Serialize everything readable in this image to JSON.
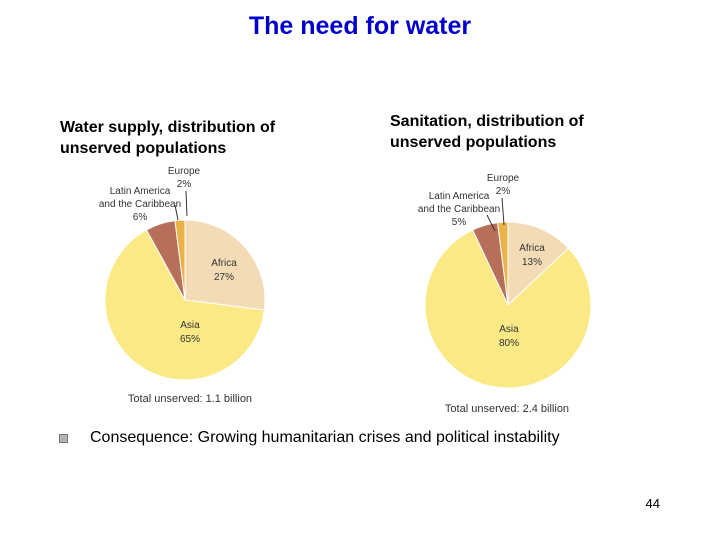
{
  "title": "The need for water",
  "colors": {
    "title": "#0000cc",
    "africa": "#f3dcb5",
    "asia": "#fbe986",
    "latin_america": "#b86f5a",
    "europe": "#e9b348"
  },
  "chart_data": [
    {
      "type": "pie",
      "title": "Water supply, distribution of unserved populations",
      "total_label": "Total unserved: 1.1 billion",
      "slices": [
        {
          "key": "africa",
          "label": "Africa",
          "value": 27,
          "value_label": "27%"
        },
        {
          "key": "asia",
          "label": "Asia",
          "value": 65,
          "value_label": "65%"
        },
        {
          "key": "latin_america",
          "label_lines": [
            "Latin America",
            "and the Caribbean"
          ],
          "value": 6,
          "value_label": "6%"
        },
        {
          "key": "europe",
          "label": "Europe",
          "value": 2,
          "value_label": "2%"
        }
      ]
    },
    {
      "type": "pie",
      "title": "Sanitation, distribution of unserved populations",
      "total_label": "Total unserved: 2.4 billion",
      "slices": [
        {
          "key": "africa",
          "label": "Africa",
          "value": 13,
          "value_label": "13%"
        },
        {
          "key": "asia",
          "label": "Asia",
          "value": 80,
          "value_label": "80%"
        },
        {
          "key": "latin_america",
          "label_lines": [
            "Latin America",
            "and the Caribbean"
          ],
          "value": 5,
          "value_label": "5%"
        },
        {
          "key": "europe",
          "label": "Europe",
          "value": 2,
          "value_label": "2%"
        }
      ]
    }
  ],
  "bullet": {
    "text": "Consequence: Growing humanitarian crises and political instability"
  },
  "page_number": "44"
}
